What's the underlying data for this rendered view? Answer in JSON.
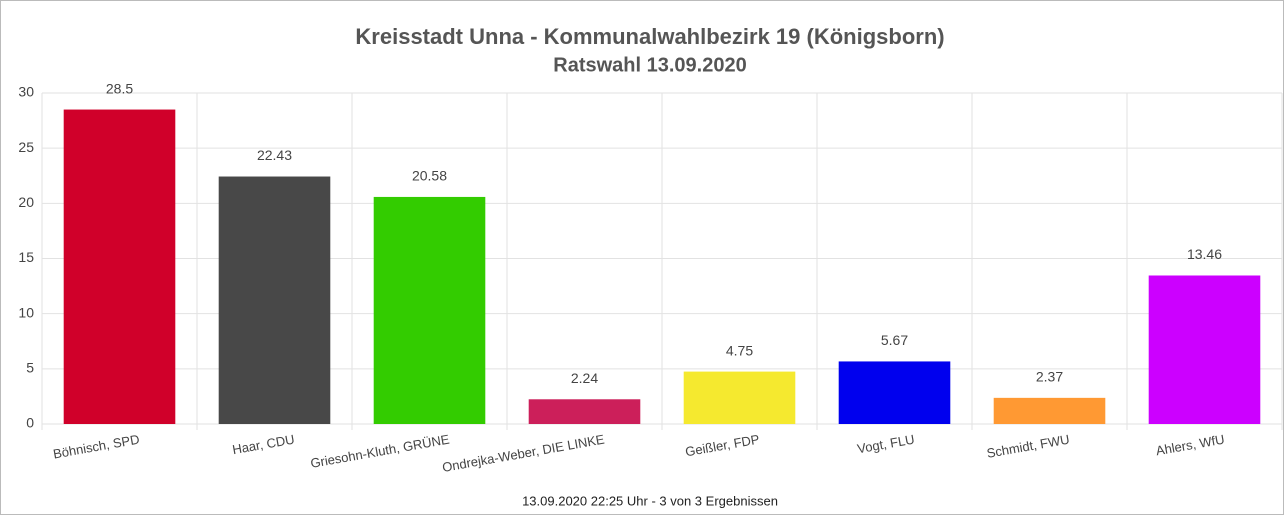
{
  "chart_data": {
    "type": "bar",
    "title": "Kreisstadt Unna - Kommunalwahlbezirk 19 (Königsborn)",
    "subtitle": "Ratswahl 13.09.2020",
    "footer": "13.09.2020 22:25 Uhr - 3 von 3 Ergebnissen",
    "categories": [
      "Böhnisch, SPD",
      "Haar, CDU",
      "Griesohn-Kluth, GRÜNE",
      "Ondrejka-Weber, DIE LINKE",
      "Geißler, FDP",
      "Vogt, FLU",
      "Schmidt, FWU",
      "Ahlers, WfU"
    ],
    "values": [
      28.5,
      22.43,
      20.58,
      2.24,
      4.75,
      5.67,
      2.37,
      13.46
    ],
    "colors": [
      "#d0002a",
      "#484848",
      "#33cc00",
      "#cc1f5a",
      "#f5e92f",
      "#0000ee",
      "#ff9933",
      "#cc00ff"
    ],
    "ylim": [
      0,
      30
    ],
    "yticks": [
      0,
      5,
      10,
      15,
      20,
      25,
      30
    ],
    "grid": true
  }
}
